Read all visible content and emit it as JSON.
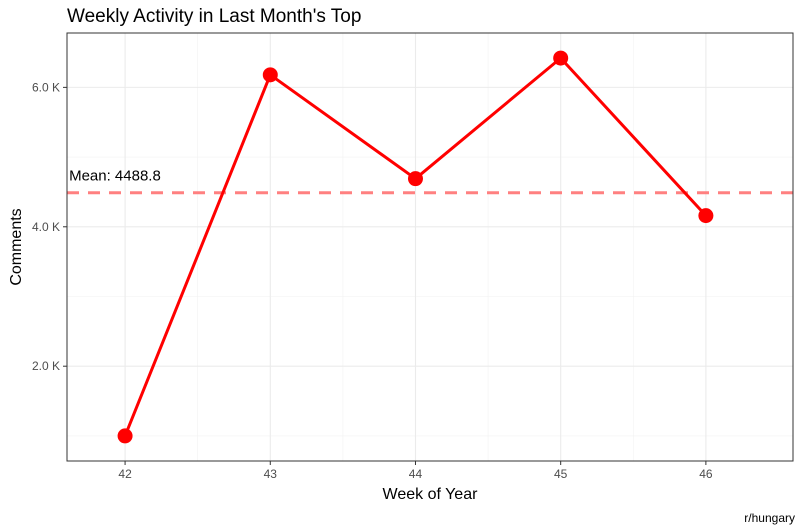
{
  "chart_data": {
    "type": "line",
    "title": "Weekly Activity in Last Month's Top",
    "xlabel": "Week of Year",
    "ylabel": "Comments",
    "caption": "r/hungary",
    "x": [
      42,
      43,
      44,
      45,
      46
    ],
    "series": [
      {
        "values": [
          1000,
          6180,
          4690,
          6420,
          4160
        ],
        "color": "#ff0000"
      }
    ],
    "mean": {
      "value": 4488.8,
      "label": "Mean: 4488.8",
      "color": "#ff8080"
    },
    "x_ticks": [
      {
        "value": 42,
        "label": "42"
      },
      {
        "value": 43,
        "label": "43"
      },
      {
        "value": 44,
        "label": "44"
      },
      {
        "value": 45,
        "label": "45"
      },
      {
        "value": 46,
        "label": "46"
      }
    ],
    "y_ticks": [
      {
        "value": 2000,
        "label": "2.0 K"
      },
      {
        "value": 4000,
        "label": "4.0 K"
      },
      {
        "value": 6000,
        "label": "6.0 K"
      }
    ],
    "xlim": [
      41.6,
      46.6
    ],
    "ylim": [
      640,
      6780
    ],
    "grid": true,
    "legend": "none"
  }
}
